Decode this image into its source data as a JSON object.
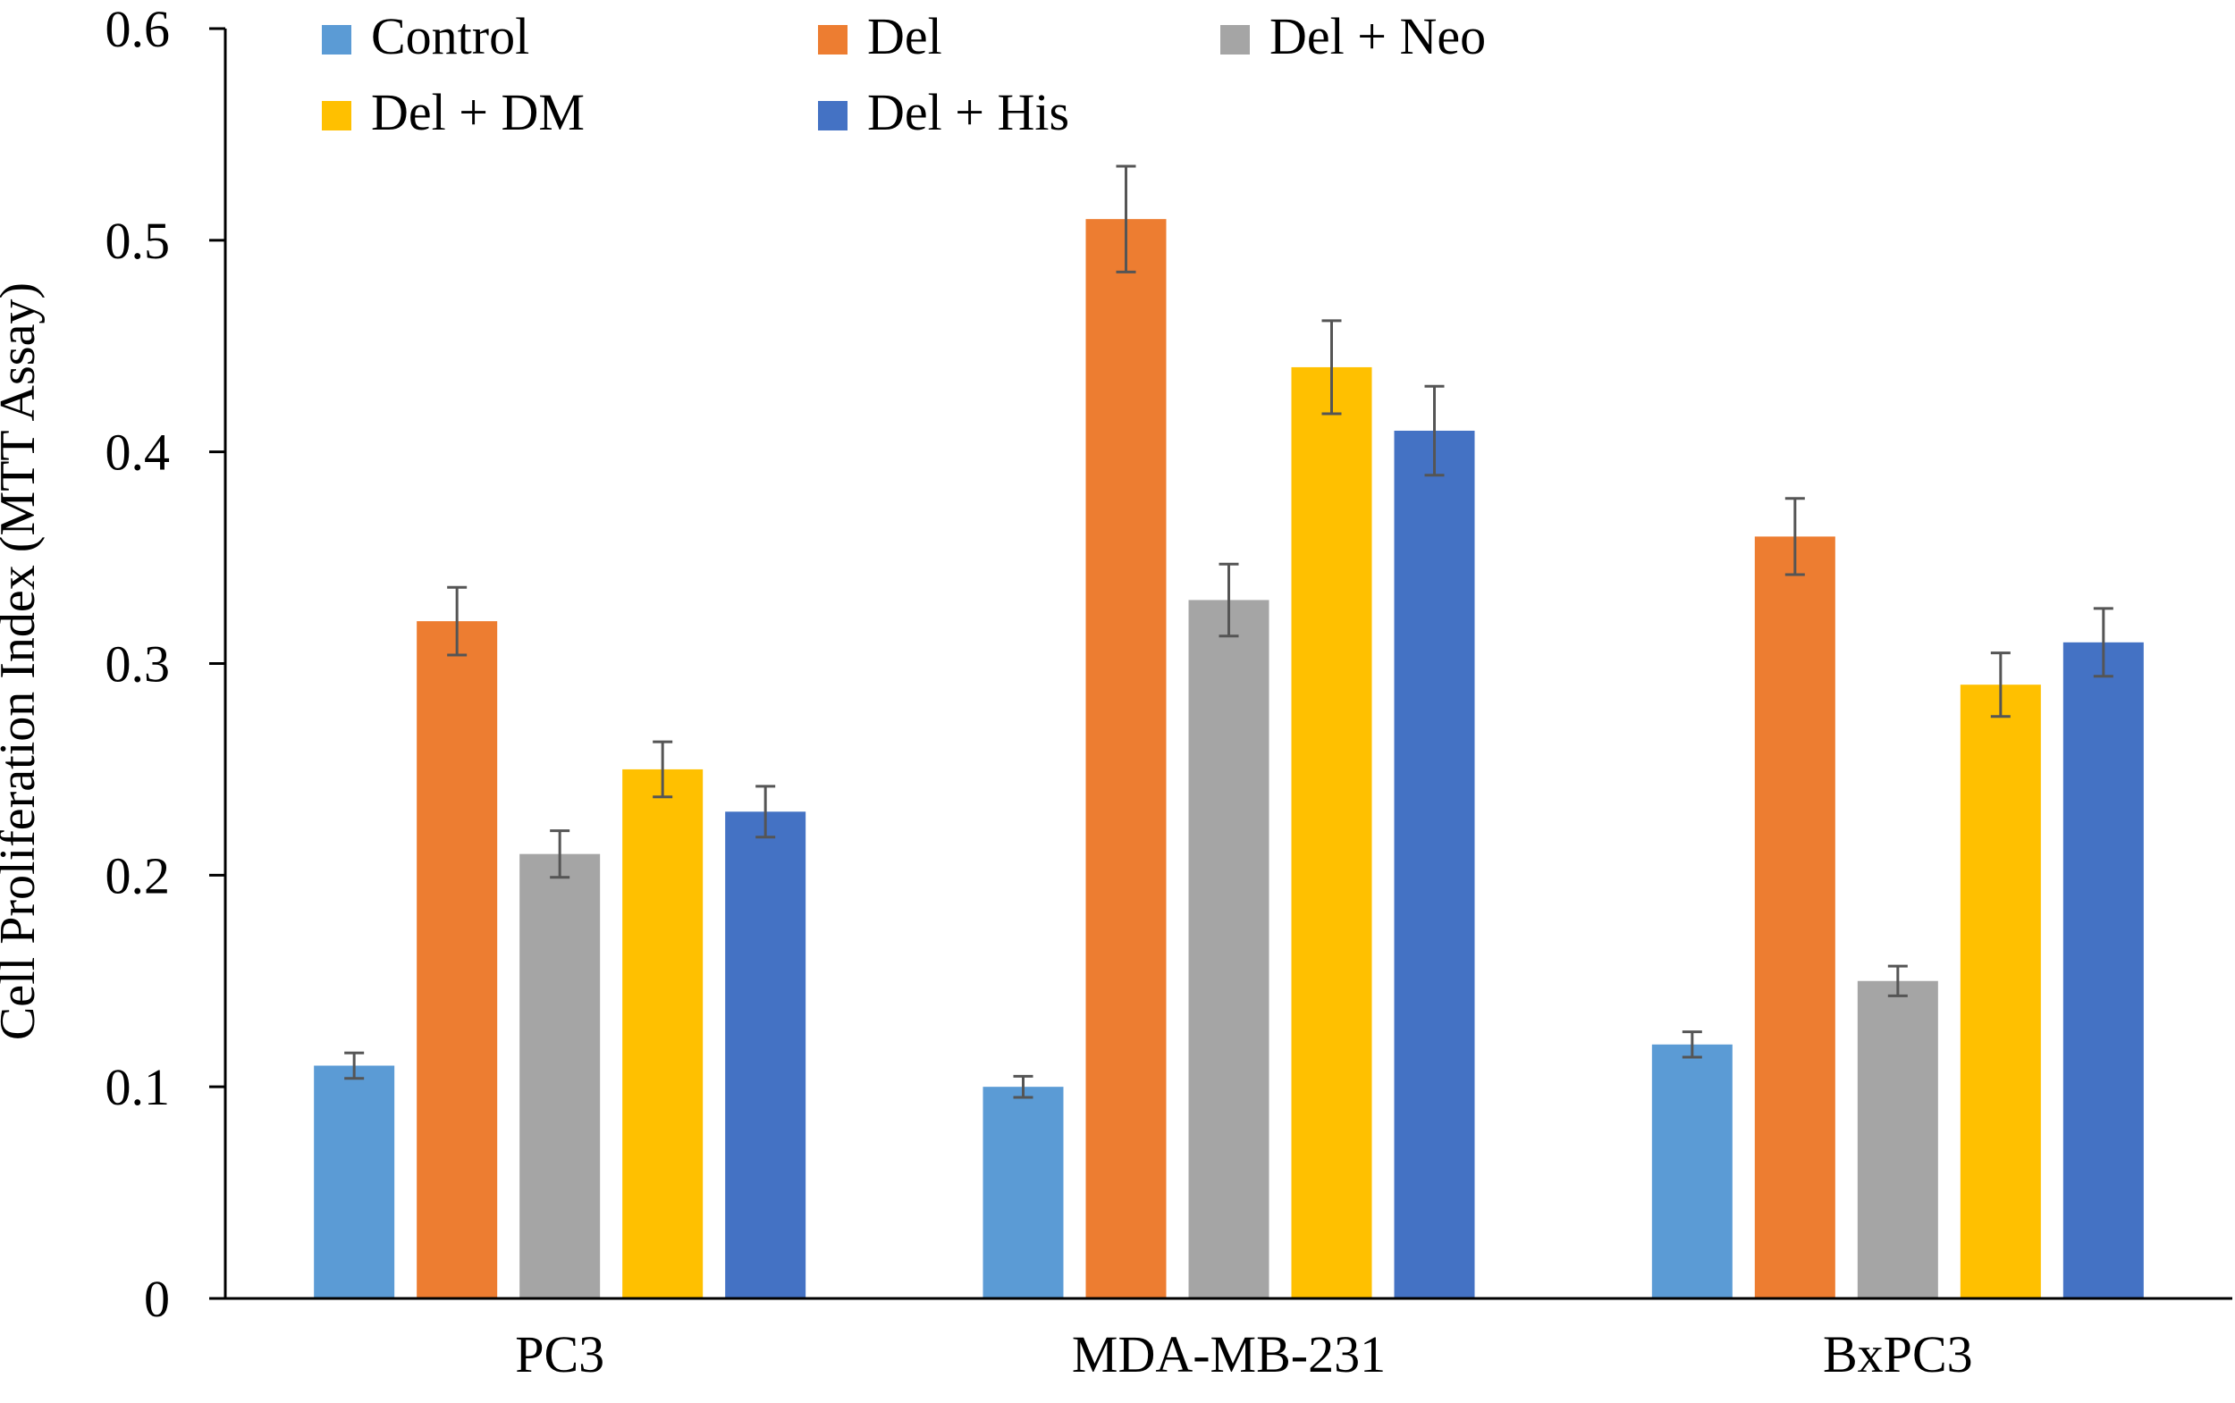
{
  "chart_data": {
    "type": "bar",
    "title": "",
    "xlabel": "",
    "ylabel": "Cell Proliferation Index (MTT Assay)",
    "ylim": [
      0,
      0.6
    ],
    "yticks": [
      0,
      0.1,
      0.2,
      0.3,
      0.4,
      0.5,
      0.6
    ],
    "ytick_labels": [
      "0",
      "0.1",
      "0.2",
      "0.3",
      "0.4",
      "0.5",
      "0.6"
    ],
    "grid": false,
    "legend_position": "top",
    "categories": [
      "PC3",
      "MDA-MB-231",
      "BxPC3"
    ],
    "series": [
      {
        "name": "Control",
        "color": "#5b9bd5",
        "values": [
          0.11,
          0.1,
          0.12
        ],
        "errors": [
          0.006,
          0.005,
          0.006
        ]
      },
      {
        "name": "Del",
        "color": "#ed7d31",
        "values": [
          0.32,
          0.51,
          0.36
        ],
        "errors": [
          0.016,
          0.025,
          0.018
        ]
      },
      {
        "name": "Del + Neo",
        "color": "#a5a5a5",
        "values": [
          0.21,
          0.33,
          0.15
        ],
        "errors": [
          0.011,
          0.017,
          0.007
        ]
      },
      {
        "name": "Del + DM",
        "color": "#ffc000",
        "values": [
          0.25,
          0.44,
          0.29
        ],
        "errors": [
          0.013,
          0.022,
          0.015
        ]
      },
      {
        "name": "Del + His",
        "color": "#4472c4",
        "values": [
          0.23,
          0.41,
          0.31
        ],
        "errors": [
          0.012,
          0.021,
          0.016
        ]
      }
    ]
  }
}
